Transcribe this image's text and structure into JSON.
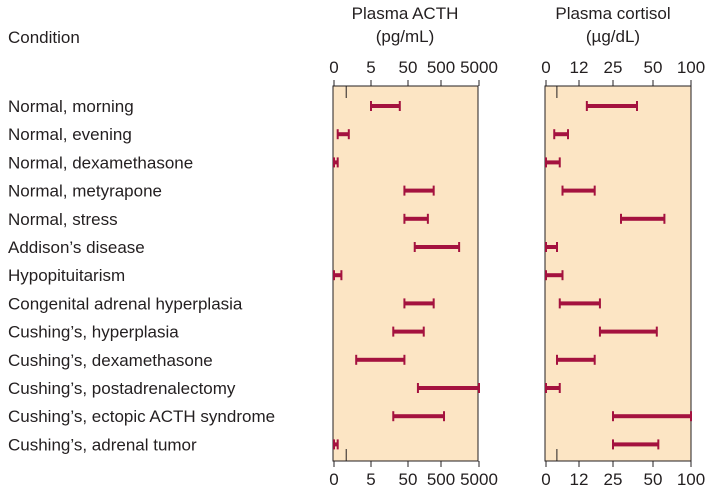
{
  "chart_data": {
    "type": "range-bar",
    "row_header": "Condition",
    "colors": {
      "panel": "#fce5c4",
      "bar": "#a4123f",
      "frame": "#231f20"
    },
    "categories": [
      "Normal, morning",
      "Normal, evening",
      "Normal, dexamethasone",
      "Normal, metyrapone",
      "Normal, stress",
      "Addison’s disease",
      "Hypopituitarism",
      "Congenital adrenal hyperplasia",
      "Cushing’s, hyperplasia",
      "Cushing’s, dexamethasone",
      "Cushing’s, postadrenalectomy",
      "Cushing’s, ectopic ACTH syndrome",
      "Cushing’s, adrenal tumor"
    ],
    "panels": [
      {
        "title_line1": "Plasma ACTH",
        "title_line2": "(pg/mL)",
        "ticks": [
          "0",
          "5",
          "50",
          "500",
          "5000"
        ],
        "ranges": [
          [
            5,
            30
          ],
          [
            0.5,
            2
          ],
          [
            0,
            0.5
          ],
          [
            40,
            300
          ],
          [
            40,
            200
          ],
          [
            80,
            1500
          ],
          [
            0,
            1
          ],
          [
            40,
            300
          ],
          [
            20,
            150
          ],
          [
            3,
            40
          ],
          [
            100,
            5000
          ],
          [
            20,
            600
          ],
          [
            0,
            0.5
          ]
        ]
      },
      {
        "title_line1": "Plasma cortisol",
        "title_line2": "(µg/dL)",
        "ticks": [
          "0",
          "12",
          "25",
          "50",
          "100"
        ],
        "ranges": [
          [
            15,
            40
          ],
          [
            3,
            8
          ],
          [
            0,
            5
          ],
          [
            6,
            18
          ],
          [
            30,
            65
          ],
          [
            0,
            4
          ],
          [
            0,
            6
          ],
          [
            5,
            20
          ],
          [
            20,
            55
          ],
          [
            4,
            18
          ],
          [
            0,
            5
          ],
          [
            25,
            100
          ],
          [
            25,
            57
          ]
        ]
      }
    ]
  }
}
